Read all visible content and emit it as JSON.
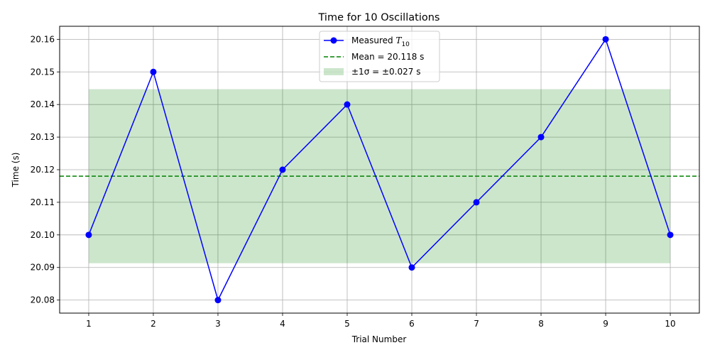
{
  "chart_data": {
    "type": "line",
    "title": "Time for 10 Oscillations",
    "xlabel": "Trial Number",
    "ylabel": "Time (s)",
    "x": [
      1,
      2,
      3,
      4,
      5,
      6,
      7,
      8,
      9,
      10
    ],
    "xticks": [
      "1",
      "2",
      "3",
      "4",
      "5",
      "6",
      "7",
      "8",
      "9",
      "10"
    ],
    "yticks": [
      "20.08",
      "20.09",
      "20.10",
      "20.11",
      "20.12",
      "20.13",
      "20.14",
      "20.15",
      "20.16"
    ],
    "ytick_values": [
      20.08,
      20.09,
      20.1,
      20.11,
      20.12,
      20.13,
      20.14,
      20.15,
      20.16
    ],
    "xlim": [
      0.55,
      10.45
    ],
    "ylim": [
      20.076,
      20.164
    ],
    "grid": true,
    "legend_position": "top-center",
    "series": [
      {
        "name": "Measured T10",
        "legend_main": "Measured ",
        "legend_symbol": "T",
        "legend_subscript": "10",
        "values": [
          20.1,
          20.15,
          20.08,
          20.12,
          20.14,
          20.09,
          20.11,
          20.13,
          20.16,
          20.1
        ],
        "color": "#0000ff",
        "marker": "circle"
      }
    ],
    "mean": {
      "value": 20.118,
      "label": "Mean = 20.118 s",
      "color": "#008000",
      "style": "dashed"
    },
    "band": {
      "lower": 20.0913,
      "upper": 20.1447,
      "x_range": [
        1,
        10
      ],
      "label": "±1σ = ±0.027 s",
      "color": "#008000",
      "opacity": 0.2
    },
    "colors": {
      "grid": "#b0b0b0",
      "axes": "#000000",
      "background": "#ffffff"
    }
  }
}
